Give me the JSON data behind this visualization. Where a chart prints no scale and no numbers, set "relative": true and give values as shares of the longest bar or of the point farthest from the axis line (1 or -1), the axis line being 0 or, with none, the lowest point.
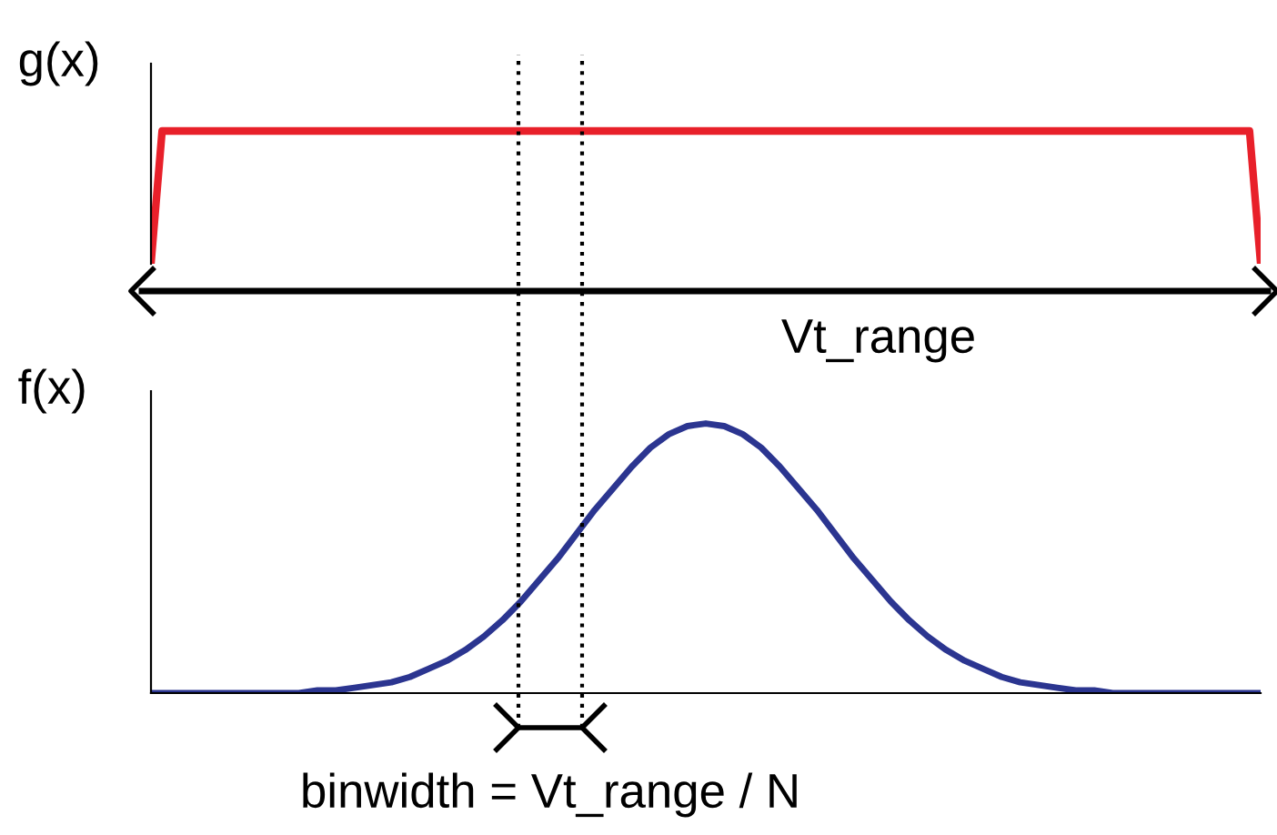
{
  "chart_data": [
    {
      "type": "line",
      "ylabel": "g(x)",
      "relative": true,
      "categories": [
        null,
        null,
        null,
        null,
        null,
        null,
        null,
        null,
        null,
        null,
        null,
        null,
        null,
        null,
        null,
        null,
        null,
        null,
        null,
        null,
        null,
        null,
        null,
        null,
        null,
        null,
        null,
        null,
        null,
        null,
        null,
        null,
        null,
        null,
        null,
        null,
        null,
        null,
        null,
        null,
        null,
        null,
        null,
        null,
        null,
        null,
        null,
        null,
        null,
        null,
        null,
        null,
        null,
        null,
        null,
        null,
        null,
        null,
        null,
        null,
        null,
        null,
        null,
        null,
        null,
        null,
        null,
        null,
        null,
        null,
        null,
        null,
        null,
        null,
        null,
        null,
        null,
        null,
        null,
        null,
        null,
        null,
        null,
        null,
        null,
        null,
        null,
        null,
        null,
        null,
        null,
        null,
        null,
        null,
        null,
        null,
        null,
        null,
        null,
        null,
        null
      ],
      "series": [
        {
          "color": "#e8202a",
          "values": [
            0,
            1,
            1,
            1,
            1,
            1,
            1,
            1,
            1,
            1,
            1,
            1,
            1,
            1,
            1,
            1,
            1,
            1,
            1,
            1,
            1,
            1,
            1,
            1,
            1,
            1,
            1,
            1,
            1,
            1,
            1,
            1,
            1,
            1,
            1,
            1,
            1,
            1,
            1,
            1,
            1,
            1,
            1,
            1,
            1,
            1,
            1,
            1,
            1,
            1,
            1,
            1,
            1,
            1,
            1,
            1,
            1,
            1,
            1,
            1,
            1,
            1,
            1,
            1,
            1,
            1,
            1,
            1,
            1,
            1,
            1,
            1,
            1,
            1,
            1,
            1,
            1,
            1,
            1,
            1,
            1,
            1,
            1,
            1,
            1,
            1,
            1,
            1,
            1,
            1,
            1,
            1,
            1,
            1,
            1,
            1,
            1,
            1,
            1,
            1,
            0
          ]
        }
      ],
      "annotations": [
        "Vt_range"
      ]
    },
    {
      "type": "line",
      "ylabel": "f(x)",
      "relative": true,
      "categories": [
        null,
        null,
        null,
        null,
        null,
        null,
        null,
        null,
        null,
        null,
        null,
        null,
        null,
        null,
        null,
        null,
        null,
        null,
        null,
        null,
        null,
        null,
        null,
        null,
        null,
        null,
        null,
        null,
        null,
        null,
        null,
        null,
        null,
        null,
        null,
        null,
        null,
        null,
        null,
        null,
        null,
        null,
        null,
        null,
        null,
        null,
        null,
        null,
        null,
        null,
        null,
        null,
        null,
        null,
        null,
        null,
        null,
        null,
        null,
        null,
        null
      ],
      "series": [
        {
          "color": "#2b3590",
          "values": [
            0,
            0,
            0,
            0,
            0,
            0,
            0,
            0,
            0,
            0.01,
            0.01,
            0.02,
            0.03,
            0.04,
            0.06,
            0.09,
            0.12,
            0.16,
            0.21,
            0.27,
            0.34,
            0.42,
            0.5,
            0.59,
            0.68,
            0.76,
            0.84,
            0.91,
            0.96,
            0.99,
            1,
            0.99,
            0.96,
            0.91,
            0.84,
            0.76,
            0.68,
            0.59,
            0.5,
            0.42,
            0.34,
            0.27,
            0.21,
            0.16,
            0.12,
            0.09,
            0.06,
            0.04,
            0.03,
            0.02,
            0.01,
            0.01,
            0,
            0,
            0,
            0,
            0,
            0,
            0,
            0,
            0
          ]
        }
      ],
      "annotations": [
        "binwidth = Vt_range / N"
      ]
    }
  ]
}
